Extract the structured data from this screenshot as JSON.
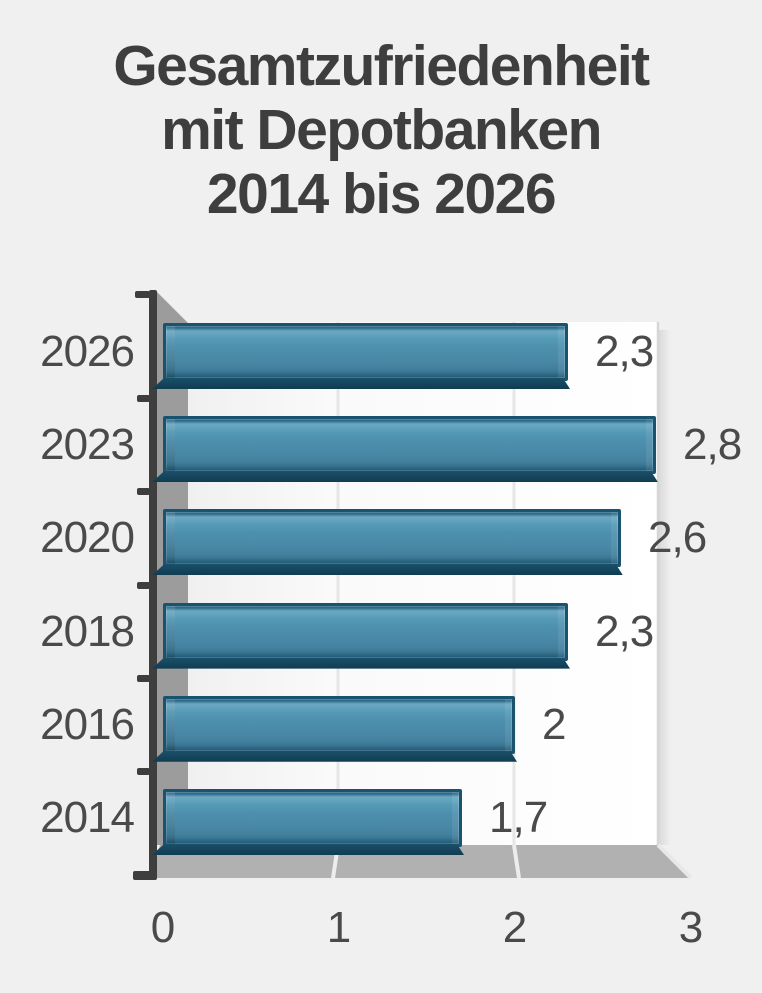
{
  "title": {
    "lines": [
      "Gesamtzufriedenheit",
      "mit Depotbanken",
      "2014 bis 2026"
    ]
  },
  "chart_data": {
    "type": "bar",
    "orientation": "horizontal",
    "style": "3d",
    "title": "Gesamtzufriedenheit mit Depotbanken 2014 bis 2026",
    "categories": [
      "2026",
      "2023",
      "2020",
      "2018",
      "2016",
      "2014"
    ],
    "values": [
      2.3,
      2.8,
      2.6,
      2.3,
      2.0,
      1.7
    ],
    "value_labels": [
      "2,3",
      "2,8",
      "2,6",
      "2,3",
      "2",
      "1,7"
    ],
    "x_ticks": [
      0,
      1,
      2,
      3
    ],
    "x_tick_labels": [
      "0",
      "1",
      "2",
      "3"
    ],
    "xlim": [
      0,
      3
    ],
    "grid": true,
    "legend": "none",
    "xlabel": "",
    "ylabel": ""
  },
  "colors": {
    "background": "#f1f0f0",
    "title_text": "#3e3e3e",
    "label_text": "#4a4a4a",
    "axis": "#3e3e3e",
    "bar_fill": "#4d8fae",
    "bar_border": "#1a536f",
    "plot_wall": "#fcfcfc",
    "plot_floor": "#b1b1b1"
  }
}
